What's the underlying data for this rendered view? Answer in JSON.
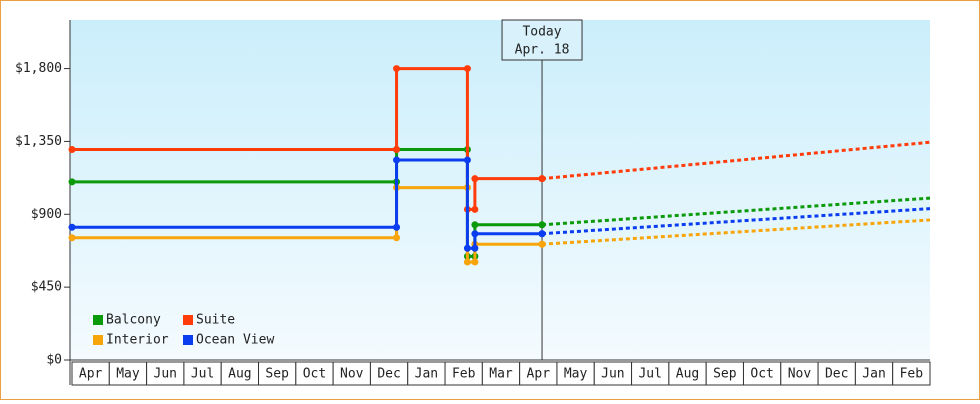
{
  "chart_data": {
    "type": "step-line",
    "xlim": [
      0,
      23
    ],
    "categories": [
      "Apr",
      "May",
      "Jun",
      "Jul",
      "Aug",
      "Sep",
      "Oct",
      "Nov",
      "Dec",
      "Jan",
      "Feb",
      "Mar",
      "Apr",
      "May",
      "Jun",
      "Jul",
      "Aug",
      "Sep",
      "Oct",
      "Nov",
      "Dec",
      "Jan",
      "Feb"
    ],
    "ylim": [
      0,
      2100
    ],
    "yticks": [
      {
        "value": 0,
        "label": "$0"
      },
      {
        "value": 450,
        "label": "$450"
      },
      {
        "value": 900,
        "label": "$900"
      },
      {
        "value": 1350,
        "label": "$1,350"
      },
      {
        "value": 1800,
        "label": "$1,800"
      }
    ],
    "x": [
      0,
      8.7,
      10.6,
      10.8,
      12.6
    ],
    "forecast_x": [
      12.6,
      23
    ],
    "today_x": 12.6,
    "today_label": "Today",
    "today_date": "Apr. 18",
    "series": [
      {
        "name": "Balcony",
        "color": "#0a9a0a",
        "values": [
          1100,
          1300,
          640,
          835,
          835
        ],
        "forecast": [
          835,
          1000
        ]
      },
      {
        "name": "Suite",
        "color": "#ff3c0a",
        "values": [
          1300,
          1800,
          930,
          1120,
          1120
        ],
        "forecast": [
          1120,
          1345
        ]
      },
      {
        "name": "Interior",
        "color": "#f7a50a",
        "values": [
          755,
          1065,
          605,
          715,
          715
        ],
        "forecast": [
          715,
          865
        ]
      },
      {
        "name": "Ocean View",
        "color": "#0a3cf0",
        "values": [
          820,
          1235,
          690,
          780,
          780
        ],
        "forecast": [
          780,
          935
        ]
      }
    ]
  }
}
